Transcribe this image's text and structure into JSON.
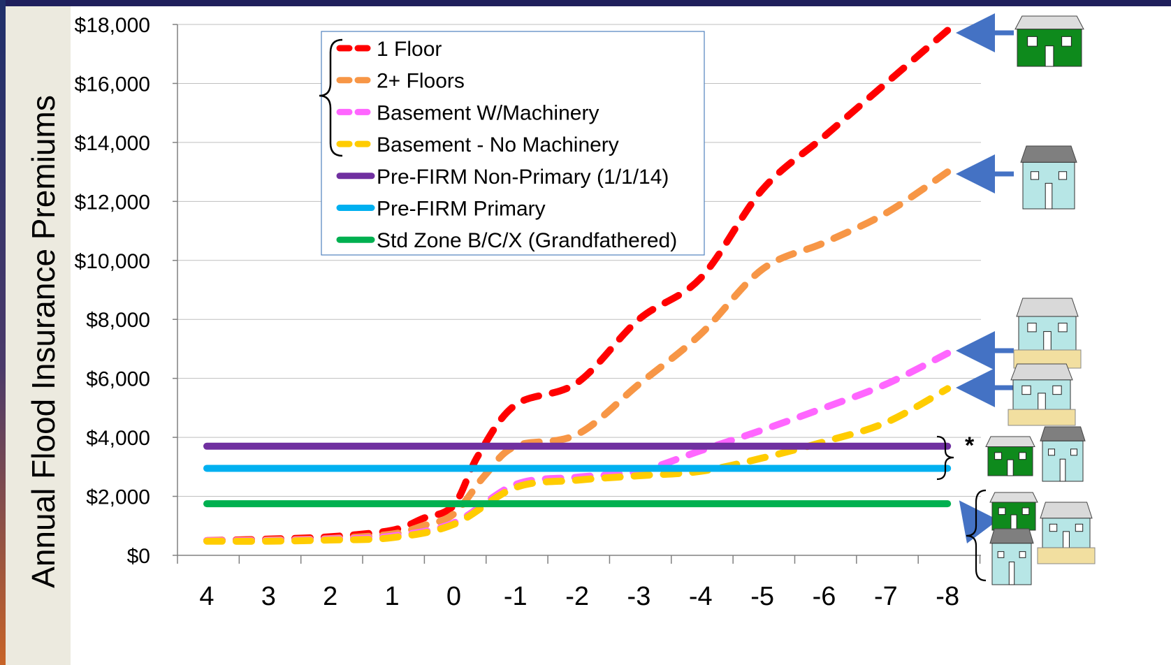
{
  "chart_data": {
    "type": "line",
    "ylabel": "Annual Flood Insurance Premiums",
    "xlabel": "",
    "x": [
      4,
      3,
      2,
      1,
      0,
      -1,
      -2,
      -3,
      -4,
      -5,
      -6,
      -7,
      -8
    ],
    "x_tick_labels": [
      "4",
      "3",
      "2",
      "1",
      "0",
      "-1",
      "-2",
      "-3",
      "-4",
      "-5",
      "-6",
      "-7",
      "-8"
    ],
    "ylim": [
      0,
      18000
    ],
    "y_tick_labels": [
      "$0",
      "$2,000",
      "$4,000",
      "$6,000",
      "$8,000",
      "$10,000",
      "$12,000",
      "$14,000",
      "$16,000",
      "$18,000"
    ],
    "grid": "horizontal",
    "series": [
      {
        "name": "1 Floor",
        "color": "#ff0000",
        "style": "dashed",
        "x": [
          4,
          3,
          2,
          1,
          0.5,
          0,
          -0.4,
          -1,
          -2,
          -3,
          -4,
          -5,
          -6,
          -7,
          -8
        ],
        "values": [
          500,
          550,
          630,
          850,
          1250,
          1700,
          3400,
          5100,
          5850,
          8000,
          9400,
          12400,
          14200,
          16000,
          17800
        ]
      },
      {
        "name": "2+ Floors",
        "color": "#f79646",
        "style": "dashed",
        "x": [
          4,
          3,
          2,
          1,
          0.5,
          0,
          -0.5,
          -1,
          -2,
          -3,
          -4,
          -5,
          -6,
          -7,
          -8
        ],
        "values": [
          500,
          520,
          570,
          720,
          1000,
          1400,
          2700,
          3700,
          4100,
          5800,
          7500,
          9700,
          10600,
          11600,
          13000
        ]
      },
      {
        "name": "Basement W/Machinery",
        "color": "#ff66ff",
        "style": "dashed",
        "x": [
          4,
          3,
          2,
          1,
          0,
          -1,
          -2,
          -3,
          -4,
          -5,
          -6,
          -7,
          -8
        ],
        "values": [
          500,
          500,
          550,
          650,
          1100,
          2400,
          2650,
          2850,
          3550,
          4250,
          5000,
          5800,
          6850
        ]
      },
      {
        "name": "Basement - No Machinery",
        "color": "#ffcc00",
        "style": "dashed",
        "x": [
          4,
          3,
          2,
          1,
          0,
          -1,
          -2,
          -3,
          -4,
          -5,
          -6,
          -7,
          -8
        ],
        "values": [
          480,
          480,
          520,
          600,
          1050,
          2300,
          2550,
          2700,
          2850,
          3300,
          3850,
          4500,
          5650
        ]
      },
      {
        "name": "Pre-FIRM Non-Primary (1/1/14)",
        "color": "#7030a0",
        "style": "solid",
        "x": [
          4,
          -8
        ],
        "values": [
          3700,
          3700
        ]
      },
      {
        "name": "Pre-FIRM Primary",
        "color": "#00b0f0",
        "style": "solid",
        "x": [
          4,
          -8
        ],
        "values": [
          2950,
          2950
        ]
      },
      {
        "name": "Std Zone B/C/X  (Grandfathered)",
        "color": "#00b050",
        "style": "solid",
        "x": [
          4,
          -8
        ],
        "values": [
          1750,
          1750
        ]
      }
    ],
    "legend": {
      "placement": "top-left"
    },
    "annotations": [
      "*"
    ]
  }
}
